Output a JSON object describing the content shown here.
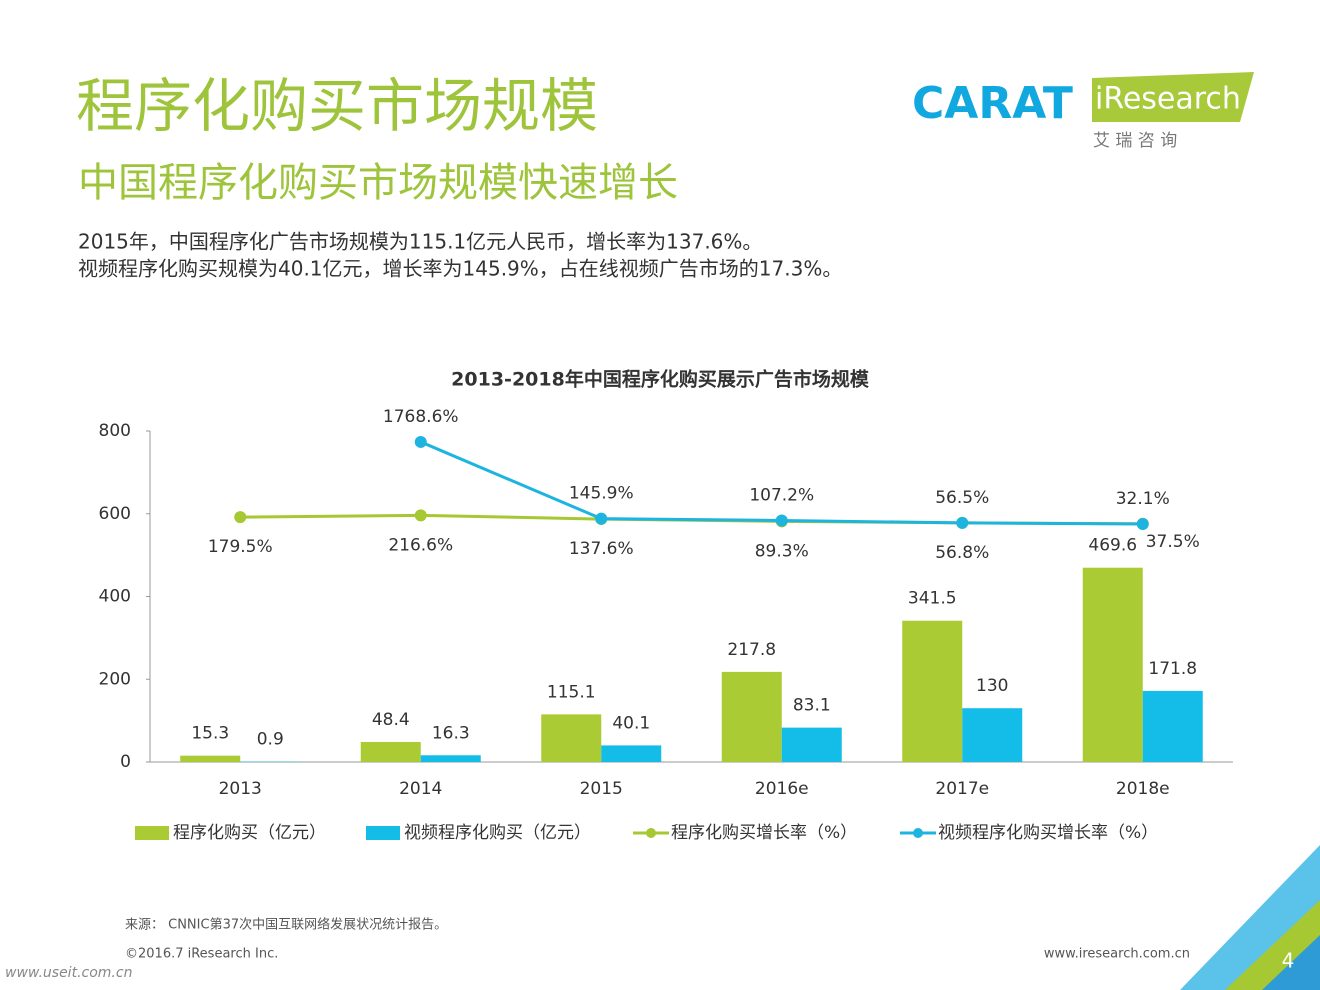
{
  "header": {
    "title": "程序化购买市场规模",
    "subtitle": "中国程序化购买市场规模快速增长",
    "summary": [
      "2015年，中国程序化广告市场规模为115.1亿元人民币，增长率为137.6%。",
      "视频程序化购买规模为40.1亿元，增长率为145.9%，占在线视频广告市场的17.3%。"
    ]
  },
  "logos": {
    "carat": "CARAT",
    "iresearch": "iResearch",
    "iresearch_cn": "艾 瑞 咨 询"
  },
  "chart_data": {
    "type": "bar",
    "title": "2013-2018年中国程序化购买展示广告市场规模",
    "categories": [
      "2013",
      "2014",
      "2015",
      "2016e",
      "2017e",
      "2018e"
    ],
    "ylim": [
      0,
      800
    ],
    "yticks": [
      0,
      200,
      400,
      600,
      800
    ],
    "y2lim": [
      -5000,
      2000
    ],
    "series": [
      {
        "name": "程序化购买（亿元）",
        "type": "bar",
        "color": "#aacb34",
        "values": [
          15.3,
          48.4,
          115.1,
          217.8,
          341.5,
          469.6
        ]
      },
      {
        "name": "视频程序化购买（亿元）",
        "type": "bar",
        "color": "#14bde8",
        "values": [
          0.9,
          16.3,
          40.1,
          83.1,
          130,
          171.8
        ]
      },
      {
        "name": "程序化购买增长率（%）",
        "type": "line",
        "axis": "y2",
        "color": "#a6c832",
        "values": [
          179.5,
          216.6,
          137.6,
          89.3,
          56.8,
          37.5
        ],
        "value_labels": [
          "179.5%",
          "216.6%",
          "137.6%",
          "89.3%",
          "56.8%",
          "37.5%"
        ]
      },
      {
        "name": "视频程序化购买增长率（%）",
        "type": "line",
        "axis": "y2",
        "color": "#1eb4e0",
        "values": [
          null,
          1768.6,
          145.9,
          107.2,
          56.5,
          32.1
        ],
        "value_labels": [
          null,
          "1768.6%",
          "145.9%",
          "107.2%",
          "56.5%",
          "32.1%"
        ]
      }
    ]
  },
  "footer": {
    "source": "来源： CNNIC第37次中国互联网络发展状况统计报告。",
    "copyright": "©2016.7 iResearch Inc.",
    "website": "www.iresearch.com.cn",
    "page": "4",
    "watermark": "www.useit.com.cn"
  }
}
